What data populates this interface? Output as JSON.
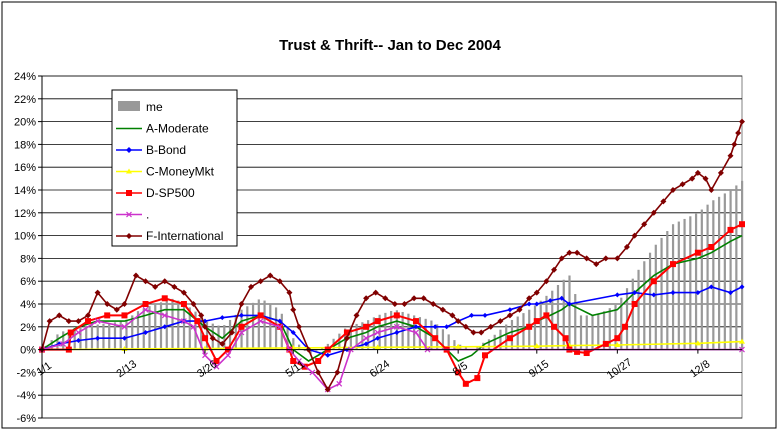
{
  "chart_data": {
    "type": "line",
    "title": "Trust & Thrift-- Jan to Dec 2004",
    "xlabel": "",
    "ylabel": "",
    "ylim": [
      -6,
      24
    ],
    "y_ticks": [
      "-6%",
      "-4%",
      "-2%",
      "0%",
      "2%",
      "4%",
      "6%",
      "8%",
      "10%",
      "12%",
      "14%",
      "16%",
      "18%",
      "20%",
      "22%",
      "24%"
    ],
    "x_tick_labels": [
      "1/1",
      "2/13",
      "3/26",
      "5/11",
      "6/24",
      "8/5",
      "9/15",
      "10/27",
      "12/8"
    ],
    "x_tick_days": [
      1,
      44,
      86,
      132,
      176,
      218,
      259,
      301,
      343
    ],
    "grid": "horizontal",
    "legend_position": "top-left",
    "series": [
      {
        "name": "me",
        "kind": "bar",
        "color": "#999999",
        "points": [
          [
            1,
            0
          ],
          [
            10,
            1.5
          ],
          [
            20,
            2.0
          ],
          [
            30,
            2.2
          ],
          [
            44,
            2.5
          ],
          [
            52,
            3.5
          ],
          [
            60,
            4.0
          ],
          [
            70,
            4.5
          ],
          [
            80,
            3.5
          ],
          [
            86,
            2.5
          ],
          [
            95,
            2.0
          ],
          [
            105,
            3.5
          ],
          [
            115,
            4.5
          ],
          [
            125,
            3.5
          ],
          [
            132,
            1.0
          ],
          [
            140,
            -0.5
          ],
          [
            150,
            0.5
          ],
          [
            160,
            2.0
          ],
          [
            170,
            2.5
          ],
          [
            176,
            3.0
          ],
          [
            185,
            3.5
          ],
          [
            195,
            3.0
          ],
          [
            205,
            2.5
          ],
          [
            212,
            1.5
          ],
          [
            218,
            0.5
          ],
          [
            225,
            0
          ],
          [
            235,
            1.0
          ],
          [
            245,
            2.5
          ],
          [
            255,
            3.5
          ],
          [
            259,
            4.0
          ],
          [
            266,
            5.0
          ],
          [
            272,
            6.0
          ],
          [
            276,
            6.5
          ],
          [
            278,
            5.5
          ],
          [
            282,
            3.0
          ],
          [
            290,
            3.0
          ],
          [
            301,
            4.0
          ],
          [
            310,
            6.5
          ],
          [
            320,
            9.0
          ],
          [
            330,
            11.0
          ],
          [
            343,
            12.0
          ],
          [
            350,
            13.0
          ],
          [
            360,
            14.0
          ],
          [
            366,
            14.8
          ]
        ]
      },
      {
        "name": "A-Moderate",
        "kind": "line",
        "color": "#008000",
        "points": [
          [
            1,
            0
          ],
          [
            10,
            1.0
          ],
          [
            20,
            2.0
          ],
          [
            30,
            2.5
          ],
          [
            44,
            2.5
          ],
          [
            55,
            3.0
          ],
          [
            65,
            3.5
          ],
          [
            75,
            3.5
          ],
          [
            86,
            2.0
          ],
          [
            95,
            1.0
          ],
          [
            105,
            2.5
          ],
          [
            115,
            3.0
          ],
          [
            125,
            2.5
          ],
          [
            132,
            0
          ],
          [
            140,
            -1.0
          ],
          [
            150,
            0
          ],
          [
            160,
            1.0
          ],
          [
            170,
            1.5
          ],
          [
            176,
            2.0
          ],
          [
            186,
            2.5
          ],
          [
            196,
            2.0
          ],
          [
            206,
            1.0
          ],
          [
            212,
            0
          ],
          [
            218,
            -1.0
          ],
          [
            225,
            -0.5
          ],
          [
            232,
            0.5
          ],
          [
            245,
            1.5
          ],
          [
            255,
            2.0
          ],
          [
            259,
            2.5
          ],
          [
            266,
            3.0
          ],
          [
            272,
            3.5
          ],
          [
            276,
            4.0
          ],
          [
            282,
            3.5
          ],
          [
            288,
            3.0
          ],
          [
            301,
            3.5
          ],
          [
            310,
            5.0
          ],
          [
            320,
            6.5
          ],
          [
            330,
            7.5
          ],
          [
            343,
            8.0
          ],
          [
            350,
            8.5
          ],
          [
            360,
            9.5
          ],
          [
            366,
            10.0
          ]
        ]
      },
      {
        "name": "B-Bond",
        "kind": "line",
        "color": "#0000ff",
        "points": [
          [
            1,
            0
          ],
          [
            10,
            0.5
          ],
          [
            20,
            0.8
          ],
          [
            30,
            1.0
          ],
          [
            44,
            1.0
          ],
          [
            55,
            1.5
          ],
          [
            65,
            2.0
          ],
          [
            75,
            2.5
          ],
          [
            86,
            2.5
          ],
          [
            95,
            2.8
          ],
          [
            105,
            3.0
          ],
          [
            115,
            3.0
          ],
          [
            125,
            2.5
          ],
          [
            132,
            1.5
          ],
          [
            140,
            0
          ],
          [
            150,
            -0.5
          ],
          [
            160,
            0
          ],
          [
            170,
            0.5
          ],
          [
            176,
            1.0
          ],
          [
            186,
            1.5
          ],
          [
            196,
            2.0
          ],
          [
            206,
            2.0
          ],
          [
            212,
            2.0
          ],
          [
            218,
            2.5
          ],
          [
            225,
            3.0
          ],
          [
            232,
            3.0
          ],
          [
            245,
            3.5
          ],
          [
            255,
            4.0
          ],
          [
            259,
            4.0
          ],
          [
            266,
            4.3
          ],
          [
            272,
            4.5
          ],
          [
            276,
            4.0
          ],
          [
            301,
            4.8
          ],
          [
            310,
            5.0
          ],
          [
            320,
            4.8
          ],
          [
            330,
            5.0
          ],
          [
            343,
            5.0
          ],
          [
            350,
            5.5
          ],
          [
            360,
            5.0
          ],
          [
            366,
            5.5
          ]
        ]
      },
      {
        "name": "C-MoneyMkt",
        "kind": "line",
        "color": "#ffff00",
        "points": [
          [
            1,
            0
          ],
          [
            44,
            0.05
          ],
          [
            86,
            0.1
          ],
          [
            132,
            0.15
          ],
          [
            176,
            0.2
          ],
          [
            218,
            0.25
          ],
          [
            259,
            0.3
          ],
          [
            276,
            0.35
          ],
          [
            301,
            0.4
          ],
          [
            343,
            0.55
          ],
          [
            366,
            0.7
          ]
        ]
      },
      {
        "name": "D-SP500",
        "kind": "line",
        "color": "#ff0000",
        "points": [
          [
            1,
            0
          ],
          [
            15,
            0
          ],
          [
            16,
            1.5
          ],
          [
            25,
            2.5
          ],
          [
            35,
            3.0
          ],
          [
            44,
            3.0
          ],
          [
            55,
            4.0
          ],
          [
            65,
            4.5
          ],
          [
            75,
            4.0
          ],
          [
            82,
            2.5
          ],
          [
            86,
            1.0
          ],
          [
            92,
            -1.0
          ],
          [
            98,
            0
          ],
          [
            105,
            2.0
          ],
          [
            115,
            3.0
          ],
          [
            125,
            2.0
          ],
          [
            130,
            0
          ],
          [
            132,
            -1.0
          ],
          [
            138,
            -1.5
          ],
          [
            145,
            -1.0
          ],
          [
            150,
            0
          ],
          [
            160,
            1.5
          ],
          [
            170,
            2.0
          ],
          [
            176,
            2.5
          ],
          [
            186,
            3.0
          ],
          [
            196,
            2.5
          ],
          [
            206,
            1.0
          ],
          [
            212,
            0
          ],
          [
            218,
            -2.0
          ],
          [
            222,
            -3.0
          ],
          [
            228,
            -2.5
          ],
          [
            232,
            -0.5
          ],
          [
            245,
            1.0
          ],
          [
            255,
            2.0
          ],
          [
            259,
            2.5
          ],
          [
            264,
            3.0
          ],
          [
            268,
            2.0
          ],
          [
            274,
            1.0
          ],
          [
            276,
            0
          ],
          [
            280,
            -0.2
          ],
          [
            285,
            -0.3
          ],
          [
            295,
            0.5
          ],
          [
            301,
            1.0
          ],
          [
            305,
            2.0
          ],
          [
            310,
            4.0
          ],
          [
            320,
            6.0
          ],
          [
            330,
            7.5
          ],
          [
            343,
            8.5
          ],
          [
            350,
            9.0
          ],
          [
            360,
            10.5
          ],
          [
            366,
            11.0
          ]
        ]
      },
      {
        "name": ".",
        "kind": "line",
        "color": "#cc33cc",
        "points": [
          [
            1,
            0
          ],
          [
            12,
            0.5
          ],
          [
            20,
            1.5
          ],
          [
            30,
            2.5
          ],
          [
            44,
            2.0
          ],
          [
            55,
            3.5
          ],
          [
            65,
            3.0
          ],
          [
            75,
            2.5
          ],
          [
            80,
            2.0
          ],
          [
            86,
            -0.5
          ],
          [
            92,
            -1.5
          ],
          [
            98,
            -0.5
          ],
          [
            105,
            1.5
          ],
          [
            115,
            2.5
          ],
          [
            125,
            2.0
          ],
          [
            130,
            0
          ],
          [
            135,
            -1.0
          ],
          [
            142,
            -2.0
          ],
          [
            150,
            -3.5
          ],
          [
            156,
            -3.0
          ],
          [
            162,
            0
          ],
          [
            170,
            1.0
          ],
          [
            176,
            1.5
          ],
          [
            186,
            2.0
          ],
          [
            196,
            1.5
          ],
          [
            202,
            0
          ],
          [
            366,
            0
          ]
        ]
      },
      {
        "name": "F-International",
        "kind": "line",
        "color": "#800000",
        "points": [
          [
            1,
            0
          ],
          [
            5,
            2.5
          ],
          [
            10,
            3.0
          ],
          [
            15,
            2.5
          ],
          [
            20,
            2.5
          ],
          [
            25,
            3.0
          ],
          [
            30,
            5.0
          ],
          [
            35,
            4.0
          ],
          [
            40,
            3.5
          ],
          [
            44,
            4.0
          ],
          [
            50,
            6.5
          ],
          [
            55,
            6.0
          ],
          [
            60,
            5.5
          ],
          [
            65,
            6.0
          ],
          [
            70,
            5.5
          ],
          [
            75,
            5.0
          ],
          [
            80,
            4.0
          ],
          [
            84,
            3.0
          ],
          [
            86,
            2.0
          ],
          [
            90,
            1.0
          ],
          [
            95,
            0.5
          ],
          [
            100,
            1.5
          ],
          [
            105,
            4.0
          ],
          [
            110,
            5.5
          ],
          [
            115,
            6.0
          ],
          [
            120,
            6.5
          ],
          [
            125,
            6.0
          ],
          [
            130,
            5.0
          ],
          [
            132,
            3.5
          ],
          [
            135,
            2.0
          ],
          [
            140,
            0
          ],
          [
            145,
            -2.0
          ],
          [
            150,
            -3.5
          ],
          [
            155,
            -2.0
          ],
          [
            160,
            1.0
          ],
          [
            165,
            3.0
          ],
          [
            170,
            4.5
          ],
          [
            175,
            5.0
          ],
          [
            180,
            4.5
          ],
          [
            185,
            4.0
          ],
          [
            190,
            4.0
          ],
          [
            195,
            4.5
          ],
          [
            200,
            4.5
          ],
          [
            205,
            4.0
          ],
          [
            210,
            3.5
          ],
          [
            215,
            3.0
          ],
          [
            218,
            2.5
          ],
          [
            222,
            2.0
          ],
          [
            226,
            1.5
          ],
          [
            230,
            1.5
          ],
          [
            235,
            2.0
          ],
          [
            240,
            2.5
          ],
          [
            245,
            3.0
          ],
          [
            250,
            3.5
          ],
          [
            255,
            4.5
          ],
          [
            259,
            5.0
          ],
          [
            264,
            6.0
          ],
          [
            268,
            7.0
          ],
          [
            272,
            8.0
          ],
          [
            276,
            8.5
          ],
          [
            280,
            8.5
          ],
          [
            285,
            8.0
          ],
          [
            290,
            7.5
          ],
          [
            295,
            8.0
          ],
          [
            301,
            8.0
          ],
          [
            306,
            9.0
          ],
          [
            310,
            10.0
          ],
          [
            315,
            11.0
          ],
          [
            320,
            12.0
          ],
          [
            325,
            13.0
          ],
          [
            330,
            14.0
          ],
          [
            335,
            14.5
          ],
          [
            340,
            15.0
          ],
          [
            343,
            15.5
          ],
          [
            347,
            15.0
          ],
          [
            350,
            14.0
          ],
          [
            355,
            15.5
          ],
          [
            360,
            17.0
          ],
          [
            362,
            18.0
          ],
          [
            364,
            19.0
          ],
          [
            366,
            20.0
          ]
        ]
      }
    ]
  }
}
